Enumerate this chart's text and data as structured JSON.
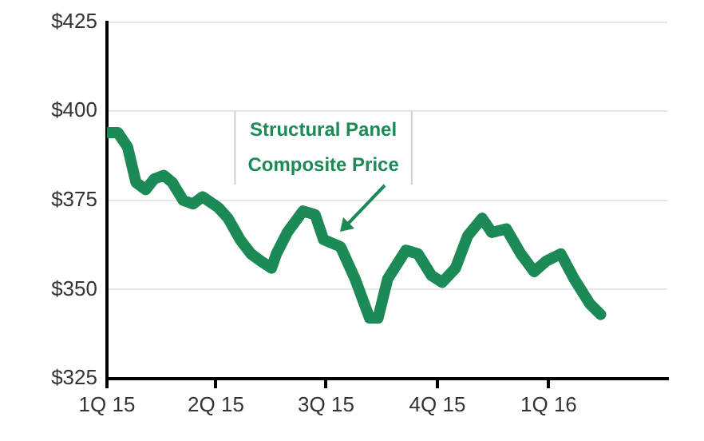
{
  "chart_data": {
    "type": "line",
    "x": [
      "2015-01-02",
      "2015-01-10",
      "2015-01-18",
      "2015-01-25",
      "2015-02-02",
      "2015-02-09",
      "2015-02-17",
      "2015-02-24",
      "2015-03-05",
      "2015-03-13",
      "2015-03-21",
      "2015-04-03",
      "2015-04-11",
      "2015-04-21",
      "2015-04-30",
      "2015-05-08",
      "2015-05-17",
      "2015-05-21",
      "2015-05-30",
      "2015-06-12",
      "2015-06-22",
      "2015-06-29",
      "2015-07-13",
      "2015-07-25",
      "2015-08-06",
      "2015-08-13",
      "2015-08-21",
      "2015-09-05",
      "2015-09-15",
      "2015-09-26",
      "2015-10-05",
      "2015-10-16",
      "2015-10-26",
      "2015-11-07",
      "2015-11-15",
      "2015-11-27",
      "2015-12-09",
      "2015-12-20",
      "2015-12-30",
      "2016-01-11",
      "2016-01-22",
      "2016-02-04",
      "2016-02-13"
    ],
    "series": [
      {
        "color": "#1b8a56",
        "values": [
          394,
          394,
          390,
          380,
          378,
          381,
          382,
          380,
          375,
          374,
          376,
          373,
          370,
          364,
          360,
          358,
          356,
          360,
          366,
          372,
          371,
          364,
          362,
          353,
          342,
          342,
          353,
          361,
          360,
          354,
          352,
          356,
          365,
          370,
          366,
          367,
          360,
          355,
          358,
          360,
          353,
          346,
          343
        ]
      }
    ],
    "xlim": [
      "2015-01-01",
      "2016-04-08"
    ],
    "xticks": [
      {
        "value": "2015-01-01",
        "label": "1Q 15"
      },
      {
        "value": "2015-04-01",
        "label": "2Q 15"
      },
      {
        "value": "2015-07-01",
        "label": "3Q 15"
      },
      {
        "value": "2015-10-01",
        "label": "4Q 15"
      },
      {
        "value": "2016-01-01",
        "label": "1Q 16"
      }
    ],
    "ylim": [
      325,
      425
    ],
    "yticks": [
      {
        "value": 325,
        "label": "$325"
      },
      {
        "value": 350,
        "label": "$350"
      },
      {
        "value": 375,
        "label": "$375"
      },
      {
        "value": 400,
        "label": "$400"
      },
      {
        "value": 425,
        "label": "$425"
      }
    ],
    "grid": "y",
    "legend": false,
    "marker": "none",
    "line_style": "solid",
    "annotations": [
      {
        "text": "Structural Panel\nComposite Price",
        "x": "2015-07-12",
        "y": 366
      }
    ]
  }
}
